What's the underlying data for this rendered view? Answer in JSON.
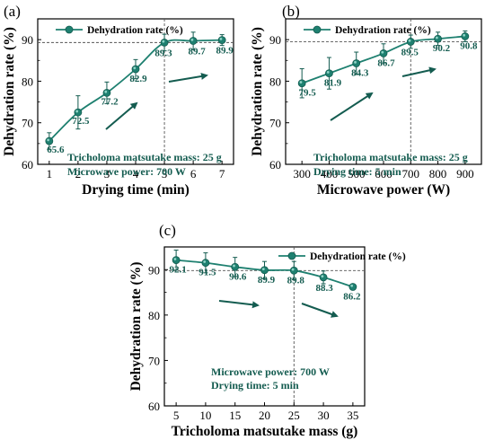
{
  "colors": {
    "accent": "#1e8070",
    "accent_dark": "#145c50",
    "marker_light": "#8fd3c6",
    "axis": "#000000",
    "reference_line": "#555555"
  },
  "chart_data": [
    {
      "type": "line",
      "panel_label": "(a)",
      "title": "",
      "xlabel": "Drying time (min)",
      "ylabel": "Dehydration rate (%)",
      "x": [
        1,
        2,
        3,
        4,
        5,
        6,
        7
      ],
      "xticks": [
        1,
        2,
        3,
        4,
        5,
        6,
        7
      ],
      "xlim": [
        0.6,
        7.4
      ],
      "ylim": [
        60,
        95
      ],
      "yticks": [
        60,
        70,
        80,
        90
      ],
      "series": [
        {
          "name": "Dehydration rate (%)",
          "values": [
            65.6,
            72.5,
            77.2,
            82.9,
            89.3,
            89.7,
            89.9
          ],
          "errors": [
            2.0,
            4.0,
            2.6,
            2.3,
            2.0,
            2.1,
            1.3
          ],
          "point_labels": [
            "65.6",
            "72.5",
            "77.2",
            "82.9",
            "89.3",
            "89.7",
            "89.9"
          ]
        }
      ],
      "legend": "top",
      "reference_x": 5,
      "reference_y": 89.3,
      "annotations": [
        "Tricholoma matsutake mass: 25 g",
        "Microwave power: 700 W"
      ]
    },
    {
      "type": "line",
      "panel_label": "(b)",
      "title": "",
      "xlabel": "Microwave power (W)",
      "ylabel": "Dehydration rate (%)",
      "x": [
        300,
        400,
        500,
        600,
        700,
        800,
        900
      ],
      "xticks": [
        300,
        400,
        500,
        600,
        700,
        800,
        900
      ],
      "xlim": [
        240,
        960
      ],
      "ylim": [
        60,
        95
      ],
      "yticks": [
        60,
        70,
        80,
        90
      ],
      "series": [
        {
          "name": "Dehydration rate (%)",
          "values": [
            79.5,
            81.9,
            84.3,
            86.7,
            89.5,
            90.2,
            90.8
          ],
          "errors": [
            3.5,
            3.8,
            2.7,
            2.3,
            1.6,
            1.6,
            1.3
          ],
          "point_labels": [
            "79.5",
            "81.9",
            "84.3",
            "86.7",
            "89.5",
            "90.2",
            "90.8"
          ]
        }
      ],
      "legend": "top",
      "reference_x": 700,
      "reference_y": 89.5,
      "annotations": [
        "Tricholoma matsutake mass: 25 g",
        "Drying time: 5 min"
      ]
    },
    {
      "type": "line",
      "panel_label": "(c)",
      "title": "",
      "xlabel": "Tricholoma matsutake mass (g)",
      "ylabel": "Dehydration rate (%)",
      "x": [
        5,
        10,
        15,
        20,
        25,
        30,
        35
      ],
      "xticks": [
        5,
        10,
        15,
        20,
        25,
        30,
        35
      ],
      "xlim": [
        3,
        37
      ],
      "ylim": [
        60,
        95
      ],
      "yticks": [
        60,
        70,
        80,
        90
      ],
      "series": [
        {
          "name": "Dehydration rate (%)",
          "values": [
            92.1,
            91.5,
            90.6,
            89.9,
            89.8,
            88.3,
            86.2
          ],
          "errors": [
            2.2,
            2.2,
            2.1,
            1.9,
            2.0,
            1.4,
            0.6
          ],
          "point_labels": [
            "92.1",
            "91.5",
            "90.6",
            "89.9",
            "89.8",
            "88.3",
            "86.2"
          ]
        }
      ],
      "legend": "top-right",
      "reference_x": 25,
      "reference_y": 89.8,
      "annotations": [
        "Microwave power: 700 W",
        "Drying time: 5 min"
      ]
    }
  ]
}
